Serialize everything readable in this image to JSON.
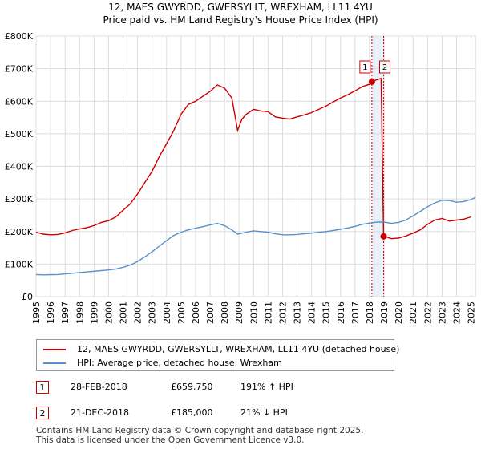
{
  "chart_data": {
    "type": "line",
    "title": "12, MAES GWYRDD, GWERSYLLT, WREXHAM, LL11 4YU",
    "subtitle": "Price paid vs. HM Land Registry's House Price Index (HPI)",
    "xlabel": "",
    "ylabel": "",
    "xlim": [
      1995,
      2025.3
    ],
    "ylim": [
      0,
      800000
    ],
    "yticks": [
      0,
      100000,
      200000,
      300000,
      400000,
      500000,
      600000,
      700000,
      800000
    ],
    "ytick_labels": [
      "£0",
      "£100K",
      "£200K",
      "£300K",
      "£400K",
      "£500K",
      "£600K",
      "£700K",
      "£800K"
    ],
    "xticks": [
      1995,
      1996,
      1997,
      1998,
      1999,
      2000,
      2001,
      2002,
      2003,
      2004,
      2005,
      2006,
      2007,
      2008,
      2009,
      2010,
      2011,
      2012,
      2013,
      2014,
      2015,
      2016,
      2017,
      2018,
      2019,
      2020,
      2021,
      2022,
      2023,
      2024,
      2025
    ],
    "grid": true,
    "series": [
      {
        "name": "12, MAES GWYRDD, GWERSYLLT, WREXHAM, LL11 4YU (detached house)",
        "color": "#cc0000",
        "x": [
          1995.0,
          1995.5,
          1996.0,
          1996.5,
          1997.0,
          1997.5,
          1998.0,
          1998.5,
          1999.0,
          1999.5,
          2000.0,
          2000.5,
          2001.0,
          2001.5,
          2002.0,
          2002.5,
          2003.0,
          2003.5,
          2004.0,
          2004.5,
          2005.0,
          2005.5,
          2006.0,
          2006.5,
          2007.0,
          2007.5,
          2008.0,
          2008.5,
          2008.9,
          2009.2,
          2009.5,
          2010.0,
          2010.5,
          2011.0,
          2011.5,
          2012.0,
          2012.5,
          2013.0,
          2013.5,
          2014.0,
          2014.5,
          2015.0,
          2015.5,
          2016.0,
          2016.5,
          2017.0,
          2017.5,
          2018.0,
          2018.16,
          2018.5,
          2018.8,
          2018.97,
          2019.2,
          2019.5,
          2020.0,
          2020.5,
          2021.0,
          2021.5,
          2022.0,
          2022.5,
          2023.0,
          2023.5,
          2024.0,
          2024.5,
          2025.0
        ],
        "values": [
          198000,
          192000,
          190000,
          191000,
          196000,
          203000,
          208000,
          212000,
          218000,
          228000,
          233000,
          245000,
          265000,
          285000,
          315000,
          350000,
          385000,
          430000,
          470000,
          510000,
          560000,
          590000,
          600000,
          615000,
          630000,
          650000,
          640000,
          610000,
          510000,
          545000,
          560000,
          575000,
          570000,
          568000,
          552000,
          548000,
          545000,
          552000,
          558000,
          565000,
          575000,
          585000,
          598000,
          610000,
          620000,
          632000,
          645000,
          652000,
          659750,
          666000,
          670000,
          185000,
          183000,
          178000,
          180000,
          186000,
          195000,
          205000,
          222000,
          235000,
          240000,
          232000,
          235000,
          238000,
          245000
        ]
      },
      {
        "name": "HPI: Average price, detached house, Wrexham",
        "color": "#5b8fcc",
        "x": [
          1995.0,
          1995.5,
          1996.0,
          1996.5,
          1997.0,
          1997.5,
          1998.0,
          1998.5,
          1999.0,
          1999.5,
          2000.0,
          2000.5,
          2001.0,
          2001.5,
          2002.0,
          2002.5,
          2003.0,
          2003.5,
          2004.0,
          2004.5,
          2005.0,
          2005.5,
          2006.0,
          2006.5,
          2007.0,
          2007.5,
          2008.0,
          2008.5,
          2008.9,
          2009.2,
          2009.5,
          2010.0,
          2010.5,
          2011.0,
          2011.5,
          2012.0,
          2012.5,
          2013.0,
          2013.5,
          2014.0,
          2014.5,
          2015.0,
          2015.5,
          2016.0,
          2016.5,
          2017.0,
          2017.5,
          2018.0,
          2018.5,
          2019.0,
          2019.5,
          2020.0,
          2020.5,
          2021.0,
          2021.5,
          2022.0,
          2022.5,
          2023.0,
          2023.5,
          2024.0,
          2024.5,
          2025.0,
          2025.3
        ],
        "values": [
          68000,
          67000,
          67500,
          68000,
          70000,
          72000,
          74000,
          76000,
          78000,
          80000,
          82000,
          85000,
          90000,
          97000,
          108000,
          122000,
          138000,
          155000,
          172000,
          188000,
          198000,
          205000,
          210000,
          215000,
          220000,
          225000,
          218000,
          205000,
          192000,
          195000,
          198000,
          202000,
          200000,
          198000,
          193000,
          190000,
          190000,
          191000,
          193000,
          195000,
          198000,
          200000,
          203000,
          207000,
          211000,
          216000,
          222000,
          226000,
          229000,
          229000,
          225000,
          228000,
          235000,
          248000,
          262000,
          276000,
          288000,
          296000,
          295000,
          290000,
          292000,
          298000,
          305000
        ]
      }
    ],
    "points": [
      {
        "label": "1",
        "x": 2018.16,
        "value": 659750
      },
      {
        "label": "2",
        "x": 2018.97,
        "value": 185000
      }
    ],
    "vlines": [
      2018.16,
      2018.97
    ],
    "vband": [
      2018.16,
      2018.97
    ],
    "legend_position": "bottom"
  },
  "legend": {
    "property_label": "12, MAES GWYRDD, GWERSYLLT, WREXHAM, LL11 4YU (detached house)",
    "hpi_label": "HPI: Average price, detached house, Wrexham"
  },
  "transactions": [
    {
      "num": "1",
      "date": "28-FEB-2018",
      "price": "£659,750",
      "hpi": "191% ↑ HPI"
    },
    {
      "num": "2",
      "date": "21-DEC-2018",
      "price": "£185,000",
      "hpi": "21% ↓ HPI"
    }
  ],
  "footer": {
    "line1": "Contains HM Land Registry data © Crown copyright and database right 2025.",
    "line2": "This data is licensed under the Open Government Licence v3.0."
  }
}
